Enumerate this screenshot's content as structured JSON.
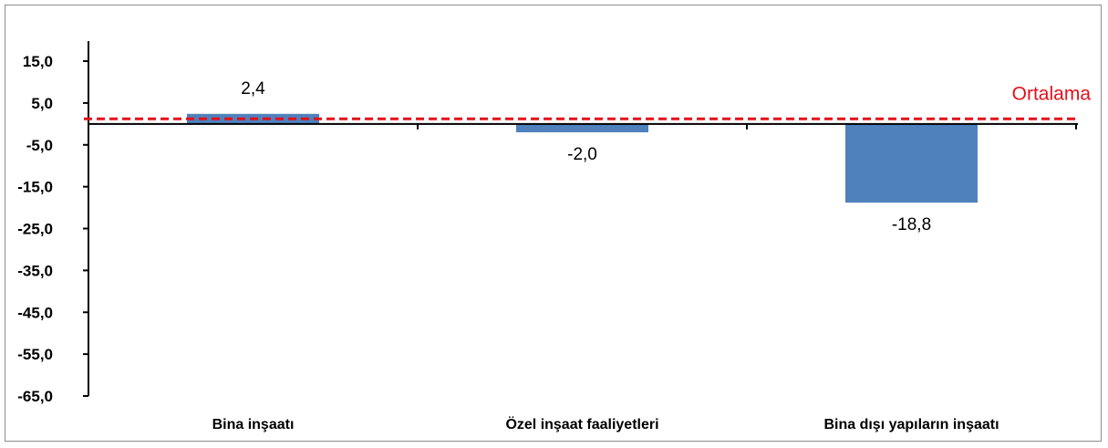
{
  "chart_data": {
    "type": "bar",
    "title": "",
    "xlabel": "",
    "ylabel": "",
    "categories": [
      "Bina inşaatı",
      "Özel inşaat faaliyetleri",
      "Bina dışı yapıların inşaatı"
    ],
    "values": [
      2.4,
      -2.0,
      -18.8
    ],
    "value_labels": [
      "2,4",
      "-2,0",
      "-18,8"
    ],
    "ylim": [
      -65,
      15
    ],
    "yticks": [
      15,
      5,
      -5,
      -15,
      -25,
      -35,
      -45,
      -55,
      -65
    ],
    "ytick_labels": [
      "15,0",
      "5,0",
      "-5,0",
      "-15,0",
      "-25,0",
      "-35,0",
      "-45,0",
      "-55,0",
      "-65,0"
    ],
    "reference_line": {
      "label": "Ortalama",
      "value": 1.2,
      "style": "dashed",
      "color": "#e3101a"
    },
    "bar_color": "#4f81bd",
    "grid": false,
    "legend": "none"
  }
}
